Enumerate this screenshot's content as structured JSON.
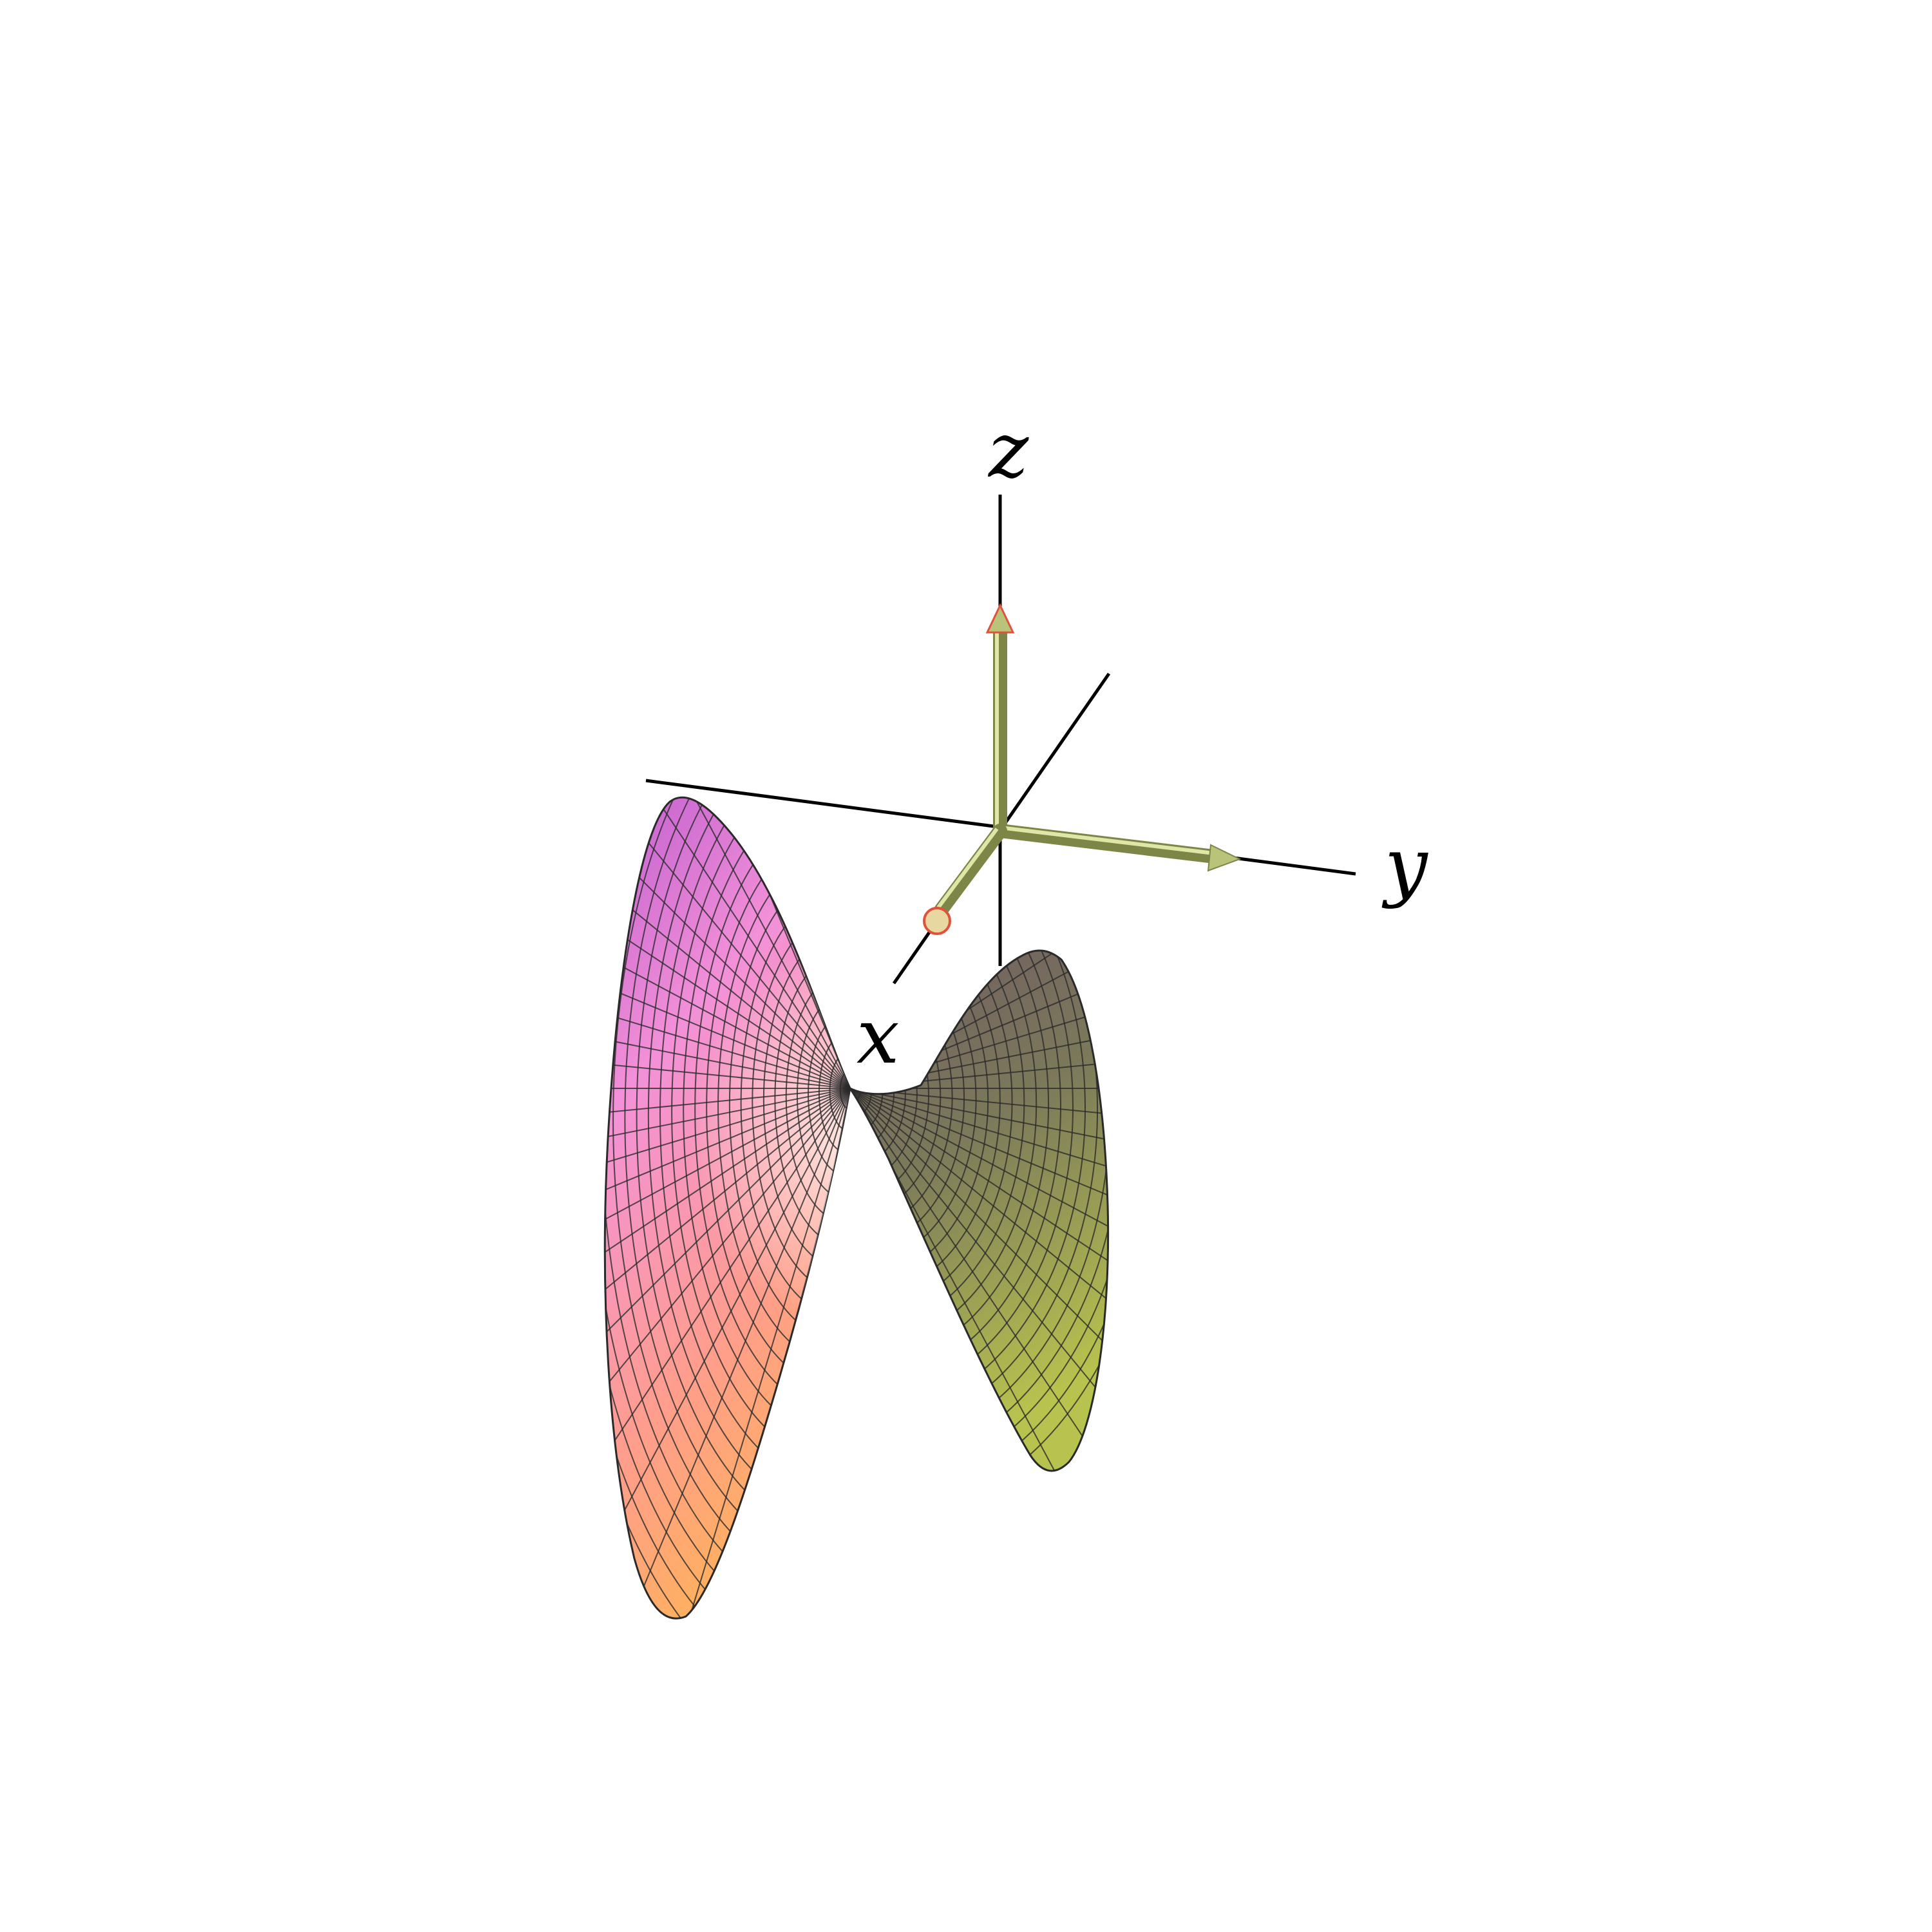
{
  "figure": {
    "background": "#ffffff",
    "axis_color": "#000000",
    "mesh_color": "#2a2a2a",
    "arrow_color": "#b9c47a",
    "arrow_tip_accent": "#e0523a",
    "surface_colors": {
      "left_top": "#c05ed0",
      "left_mid": "#f391d8",
      "left_low": "#ff9e8a",
      "left_bottom": "#ffb060",
      "center": "#fff0ea",
      "right_top": "#6f5a62",
      "right_mid": "#7c7a5a",
      "right_bottom": "#b8c24e"
    },
    "labels": {
      "x": "x",
      "y": "y",
      "z": "z"
    }
  }
}
